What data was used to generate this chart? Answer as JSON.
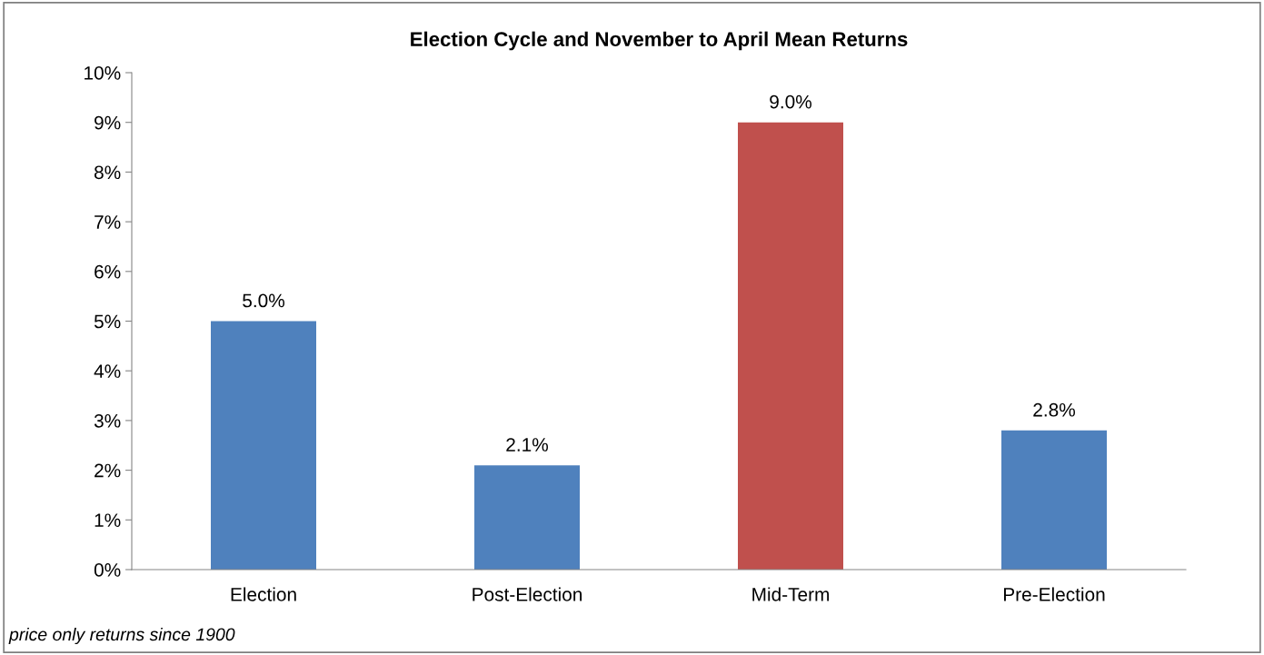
{
  "chart_data": {
    "type": "bar",
    "title": "Election Cycle and November to April Mean Returns",
    "categories": [
      "Election",
      "Post-Election",
      "Mid-Term",
      "Pre-Election"
    ],
    "values": [
      5.0,
      2.1,
      9.0,
      2.8
    ],
    "colors": [
      "#4f81bd",
      "#4f81bd",
      "#c0504d",
      "#4f81bd"
    ],
    "value_labels": [
      "5.0%",
      "2.1%",
      "9.0%",
      "2.8%"
    ],
    "ylim": [
      0,
      10
    ],
    "yticks": [
      {
        "value": 0,
        "label": "0%"
      },
      {
        "value": 1,
        "label": "1%"
      },
      {
        "value": 2,
        "label": "2%"
      },
      {
        "value": 3,
        "label": "3%"
      },
      {
        "value": 4,
        "label": "4%"
      },
      {
        "value": 5,
        "label": "5%"
      },
      {
        "value": 6,
        "label": "6%"
      },
      {
        "value": 7,
        "label": "7%"
      },
      {
        "value": 8,
        "label": "8%"
      },
      {
        "value": 9,
        "label": "9%"
      },
      {
        "value": 10,
        "label": "10%"
      }
    ],
    "grid": false,
    "legend": false,
    "annotations": [
      "price only returns since 1900"
    ]
  }
}
